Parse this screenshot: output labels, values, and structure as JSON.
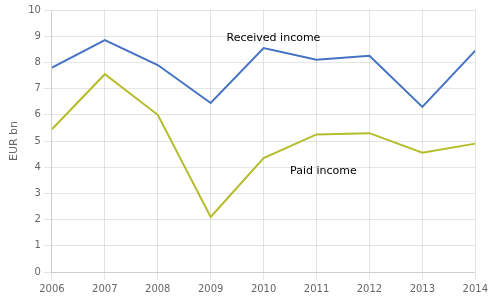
{
  "chart_data": {
    "type": "line",
    "y_label": "EUR bn",
    "x": [
      2006,
      2007,
      2008,
      2009,
      2010,
      2011,
      2012,
      2013,
      2014
    ],
    "series": [
      {
        "name": "Received income",
        "color": "#4472C4",
        "values": [
          7.8,
          8.85,
          7.9,
          6.45,
          8.55,
          8.1,
          8.25,
          6.3,
          8.45
        ]
      },
      {
        "name": "Paid income",
        "color": "#b5bd2b",
        "values": [
          5.45,
          7.55,
          6.0,
          2.1,
          4.35,
          5.25,
          5.3,
          4.55,
          4.9
        ]
      }
    ],
    "xlim": [
      2006,
      2014
    ],
    "xticks": [
      2006,
      2007,
      2008,
      2009,
      2010,
      2011,
      2012,
      2013,
      2014
    ],
    "ylim": [
      0,
      10
    ],
    "yticks": [
      0,
      1,
      2,
      3,
      4,
      5,
      6,
      7,
      8,
      9,
      10
    ],
    "grid": true
  }
}
